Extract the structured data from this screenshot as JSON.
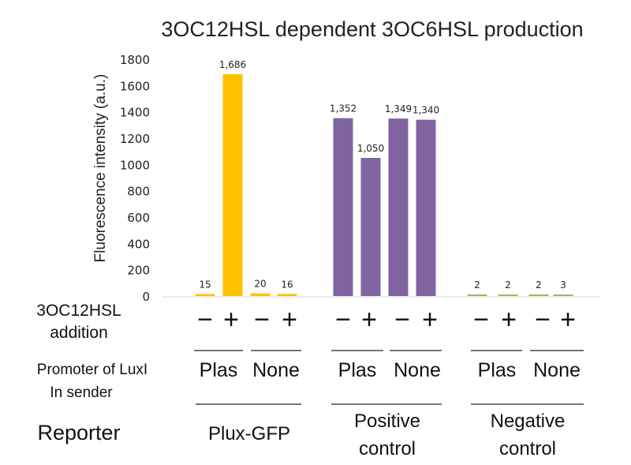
{
  "chart_data": {
    "type": "bar",
    "title": "3OC12HSL dependent 3OC6HSL production",
    "ylabel": "Fluorescence intensity (a.u.)",
    "ylim": [
      0,
      1800
    ],
    "yticks": [
      "0",
      "200",
      "400",
      "600",
      "800",
      "1000",
      "1200",
      "1400",
      "1600",
      "1800"
    ],
    "grid": false,
    "bars": [
      {
        "value": 15,
        "label": "15",
        "color": "#ffc000"
      },
      {
        "value": 1686,
        "label": "1,686",
        "color": "#ffc000"
      },
      {
        "value": 20,
        "label": "20",
        "color": "#ffc000"
      },
      {
        "value": 16,
        "label": "16",
        "color": "#ffc000"
      },
      {
        "value": 1352,
        "label": "1,352",
        "color": "#8064a2"
      },
      {
        "value": 1050,
        "label": "1,050",
        "color": "#8064a2"
      },
      {
        "value": 1349,
        "label": "1,349",
        "color": "#8064a2"
      },
      {
        "value": 1340,
        "label": "1,340",
        "color": "#8064a2"
      },
      {
        "value": 2,
        "label": "2",
        "color": "#9bbb59"
      },
      {
        "value": 2,
        "label": "2",
        "color": "#9bbb59"
      },
      {
        "value": 2,
        "label": "2",
        "color": "#9bbb59"
      },
      {
        "value": 3,
        "label": "3",
        "color": "#9bbb59"
      }
    ],
    "rows": {
      "addition_label_line1": "3OC12HSL",
      "addition_label_line2": "addition",
      "addition_marks": [
        "−",
        "+",
        "−",
        "+",
        "−",
        "+",
        "−",
        "+",
        "−",
        "+",
        "−",
        "+"
      ],
      "promoter_label_line1": "Promoter of LuxI",
      "promoter_label_line2": "In sender",
      "promoters": [
        "Plas",
        "None",
        "Plas",
        "None",
        "Plas",
        "None"
      ],
      "reporter_label": "Reporter",
      "reporters": [
        {
          "line1": "Plux-GFP",
          "line2": ""
        },
        {
          "line1": "Positive",
          "line2": "control"
        },
        {
          "line1": "Negative",
          "line2": "control"
        }
      ]
    }
  }
}
